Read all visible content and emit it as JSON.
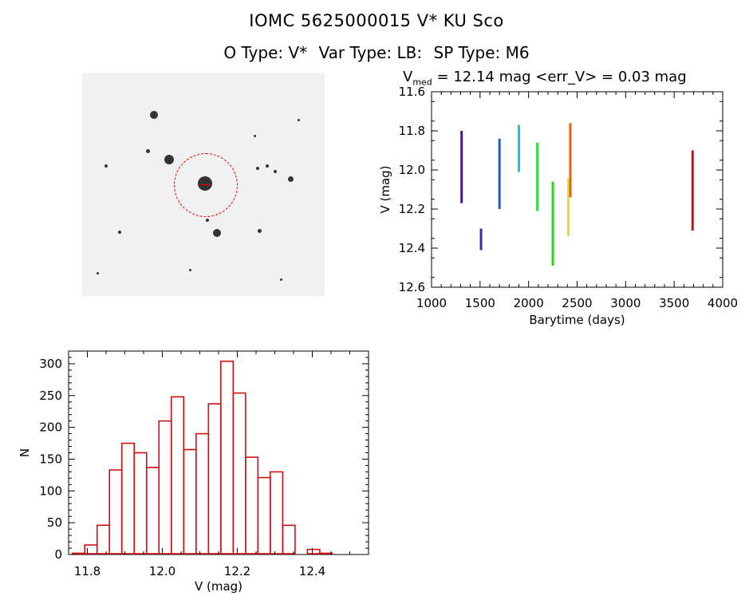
{
  "header": {
    "line1": "IOMC 5625000015    V* KU Sco",
    "otype": "O Type: V*",
    "vartype": "Var Type: LB:",
    "sptype": "SP Type: M6"
  },
  "lightcurve_title": {
    "prefix": "V",
    "sub": "med",
    "rest": " = 12.14 mag <err_V> = 0.03 mag"
  },
  "chart_data": [
    {
      "type": "scatter",
      "xlabel": "Barytime (days)",
      "ylabel": "V (mag)",
      "xlim": [
        1000,
        4000
      ],
      "ylim": [
        12.6,
        11.6
      ],
      "x_ticks": [
        1000,
        1500,
        2000,
        2500,
        3000,
        3500,
        4000
      ],
      "y_ticks": [
        11.6,
        11.8,
        12.0,
        12.2,
        12.4,
        12.6
      ],
      "y_tick_labels": [
        "11.6",
        "11.8",
        "12.0",
        "12.2",
        "12.4",
        "12.6"
      ],
      "series": [
        {
          "color": "#5a0aa0",
          "x": 1310,
          "y_min": 11.8,
          "y_max": 12.17
        },
        {
          "color": "#3a2ab0",
          "x": 1510,
          "y_min": 12.3,
          "y_max": 12.41
        },
        {
          "color": "#1a5ad0",
          "x": 1700,
          "y_min": 11.84,
          "y_max": 12.2
        },
        {
          "color": "#10c8d8",
          "x": 1900,
          "y_min": 11.77,
          "y_max": 12.01
        },
        {
          "color": "#30e040",
          "x": 2090,
          "y_min": 11.86,
          "y_max": 12.21
        },
        {
          "color": "#30d020",
          "x": 2250,
          "y_min": 12.06,
          "y_max": 12.49
        },
        {
          "color": "#e8e020",
          "x": 2410,
          "y_min": 12.04,
          "y_max": 12.34
        },
        {
          "color": "#e86010",
          "x": 2430,
          "y_min": 11.76,
          "y_max": 12.14
        },
        {
          "color": "#d01010",
          "x": 3690,
          "y_min": 11.9,
          "y_max": 12.31
        }
      ]
    },
    {
      "type": "bar",
      "xlabel": "V (mag)",
      "ylabel": "N",
      "xlim": [
        11.75,
        12.55
      ],
      "ylim": [
        0,
        320
      ],
      "x_ticks": [
        11.8,
        12.0,
        12.2,
        12.4
      ],
      "x_tick_labels": [
        "11.8",
        "12.0",
        "12.2",
        "12.4"
      ],
      "y_ticks": [
        0,
        50,
        100,
        150,
        200,
        250,
        300
      ],
      "y_tick_labels": [
        "0",
        "50",
        "100",
        "150",
        "200",
        "250",
        "300"
      ],
      "bin_start": 11.76,
      "bin_width": 0.033,
      "values": [
        2,
        15,
        46,
        133,
        175,
        160,
        137,
        210,
        248,
        165,
        190,
        237,
        304,
        254,
        153,
        121,
        130,
        46,
        1,
        8,
        2
      ],
      "color": "#d01010"
    }
  ]
}
